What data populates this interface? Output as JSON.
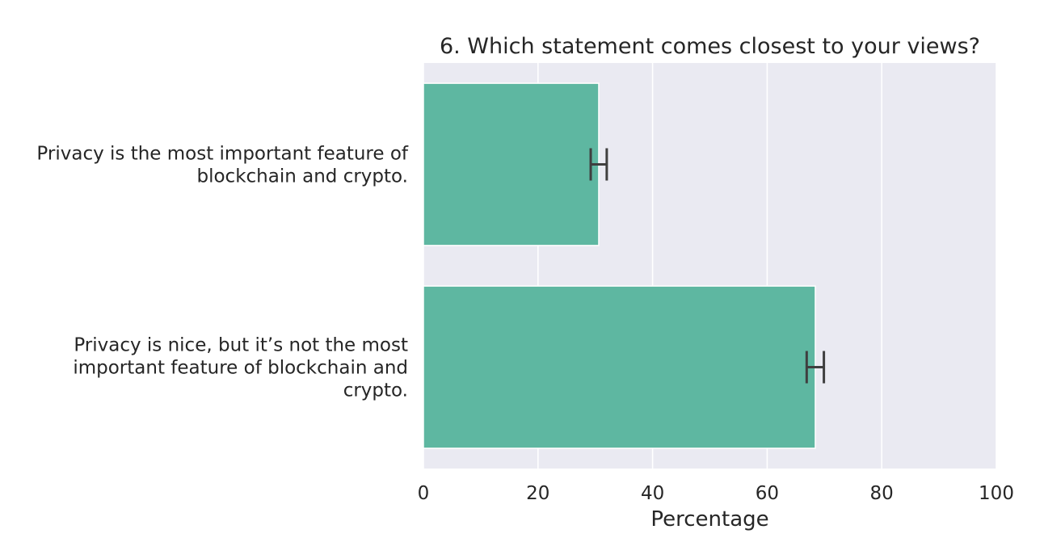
{
  "chart_data": {
    "type": "bar",
    "orientation": "horizontal",
    "title": "6. Which statement comes closest to your views?",
    "xlabel": "Percentage",
    "ylabel": "",
    "xlim": [
      0,
      100
    ],
    "xticks": [
      0,
      20,
      40,
      60,
      80,
      100
    ],
    "grid": true,
    "categories": [
      [
        "Privacy is the most important feature of",
        "blockchain and crypto."
      ],
      [
        "Privacy is nice, but it’s not the most",
        "important feature of blockchain and",
        "crypto."
      ]
    ],
    "values": [
      30.6,
      68.4
    ],
    "error_low": [
      29.2,
      66.9
    ],
    "error_high": [
      32.0,
      69.9
    ],
    "colors": {
      "bar": "#5eb7a1",
      "plot_background": "#eaeaf2",
      "gridline": "#ffffff",
      "errorbar": "#3f3f3f",
      "text": "#262626"
    }
  }
}
